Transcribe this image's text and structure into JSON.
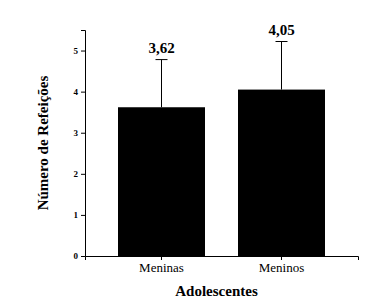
{
  "chart_data": {
    "type": "bar",
    "x_label": "Adolescentes",
    "y_label": "Número de Refeições",
    "categories": [
      "Meninas",
      "Meninos"
    ],
    "values": [
      3.62,
      4.05
    ],
    "value_labels": [
      "3,62",
      "4,05"
    ],
    "errors": [
      1.16,
      1.17
    ],
    "color": "#000000",
    "data_labels": true,
    "ylim": [
      0,
      5.5
    ],
    "yticks": [
      0,
      1,
      2,
      3,
      4,
      5
    ]
  }
}
